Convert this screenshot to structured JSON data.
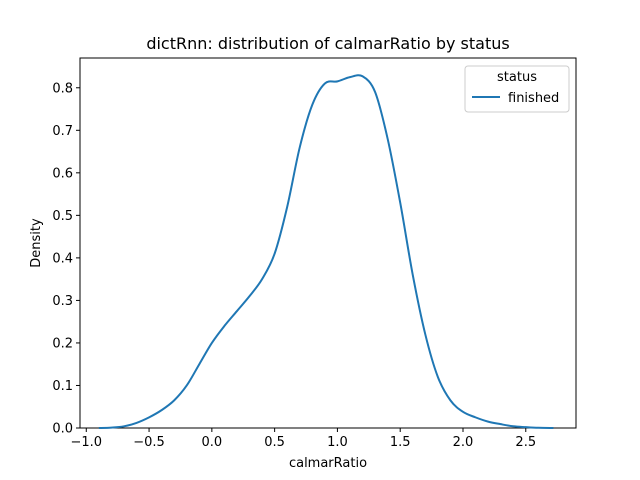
{
  "chart_data": {
    "type": "line",
    "title": "dictRnn: distribution of calmarRatio by status",
    "xlabel": "calmarRatio",
    "ylabel": "Density",
    "xlim": [
      -1.05,
      2.9
    ],
    "ylim": [
      0.0,
      0.87
    ],
    "xticks": [
      -1.0,
      -0.5,
      0.0,
      0.5,
      1.0,
      1.5,
      2.0,
      2.5
    ],
    "xtick_labels": [
      "−1.0",
      "−0.5",
      "0.0",
      "0.5",
      "1.0",
      "1.5",
      "2.0",
      "2.5"
    ],
    "yticks": [
      0.0,
      0.1,
      0.2,
      0.3,
      0.4,
      0.5,
      0.6,
      0.7,
      0.8
    ],
    "ytick_labels": [
      "0.0",
      "0.1",
      "0.2",
      "0.3",
      "0.4",
      "0.5",
      "0.6",
      "0.7",
      "0.8"
    ],
    "grid": false,
    "legend": {
      "title": "status",
      "placement": "top-right"
    },
    "series": [
      {
        "name": "finished",
        "color": "#1f77b4",
        "x": [
          -0.9,
          -0.8,
          -0.7,
          -0.6,
          -0.5,
          -0.4,
          -0.3,
          -0.2,
          -0.1,
          0.0,
          0.1,
          0.2,
          0.3,
          0.4,
          0.5,
          0.6,
          0.7,
          0.8,
          0.9,
          1.0,
          1.1,
          1.2,
          1.3,
          1.4,
          1.5,
          1.6,
          1.7,
          1.8,
          1.9,
          2.0,
          2.1,
          2.2,
          2.3,
          2.4,
          2.5,
          2.6,
          2.72
        ],
        "y": [
          0.0,
          0.001,
          0.004,
          0.012,
          0.025,
          0.042,
          0.065,
          0.1,
          0.15,
          0.2,
          0.24,
          0.275,
          0.31,
          0.35,
          0.41,
          0.52,
          0.66,
          0.76,
          0.81,
          0.815,
          0.825,
          0.827,
          0.79,
          0.68,
          0.53,
          0.36,
          0.22,
          0.12,
          0.065,
          0.038,
          0.025,
          0.015,
          0.009,
          0.004,
          0.002,
          0.0005,
          0.0
        ]
      }
    ]
  }
}
